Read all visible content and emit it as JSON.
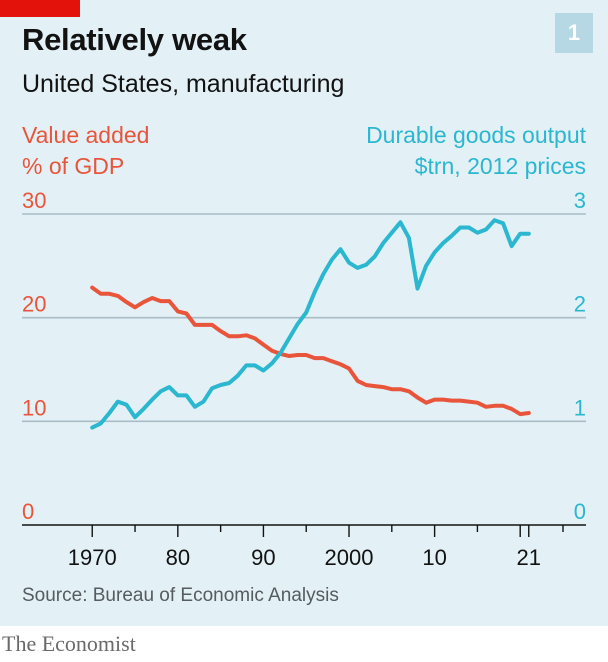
{
  "header": {
    "title": "Relatively weak",
    "subtitle": "United States, manufacturing",
    "badge": "1"
  },
  "footer": {
    "source": "Source: Bureau of Economic Analysis",
    "brand": "The Economist"
  },
  "chart_data": {
    "type": "line",
    "title": "Relatively weak",
    "subtitle": "United States, manufacturing",
    "grid": true,
    "x_ticks": [
      {
        "x": 1970,
        "label": "1970"
      },
      {
        "x": 1980,
        "label": "80"
      },
      {
        "x": 1990,
        "label": "90"
      },
      {
        "x": 2000,
        "label": "2000"
      },
      {
        "x": 2010,
        "label": "10"
      },
      {
        "x": 2021,
        "label": "21"
      }
    ],
    "xlim": [
      1966,
      2025
    ],
    "axes": {
      "left": {
        "label": "Value added",
        "unit": "% of GDP",
        "ticks": [
          "0",
          "10",
          "20",
          "30"
        ],
        "ylim": [
          0,
          30
        ],
        "color": "#e8553b"
      },
      "right": {
        "label": "Durable goods output",
        "unit": "$trn, 2012 prices",
        "ticks": [
          "0",
          "1",
          "2",
          "3"
        ],
        "ylim": [
          0,
          3
        ],
        "color": "#2ab7cf"
      }
    },
    "series": [
      {
        "name": "Value added",
        "axis": "left",
        "color": "#e8553b",
        "x": [
          1970,
          1971,
          1972,
          1973,
          1974,
          1975,
          1976,
          1977,
          1978,
          1979,
          1980,
          1981,
          1982,
          1983,
          1984,
          1985,
          1986,
          1987,
          1988,
          1989,
          1990,
          1991,
          1992,
          1993,
          1994,
          1995,
          1996,
          1997,
          1998,
          1999,
          2000,
          2001,
          2002,
          2003,
          2004,
          2005,
          2006,
          2007,
          2008,
          2009,
          2010,
          2011,
          2012,
          2013,
          2014,
          2015,
          2016,
          2017,
          2018,
          2019,
          2020,
          2021
        ],
        "values": [
          22.9,
          22.3,
          22.3,
          22.1,
          21.5,
          21.0,
          21.5,
          21.9,
          21.6,
          21.6,
          20.6,
          20.4,
          19.3,
          19.3,
          19.3,
          18.7,
          18.2,
          18.2,
          18.3,
          18.0,
          17.4,
          16.8,
          16.5,
          16.3,
          16.4,
          16.4,
          16.1,
          16.1,
          15.8,
          15.5,
          15.1,
          13.9,
          13.5,
          13.4,
          13.3,
          13.1,
          13.1,
          12.9,
          12.3,
          11.8,
          12.1,
          12.1,
          12.0,
          12.0,
          11.9,
          11.8,
          11.4,
          11.5,
          11.5,
          11.2,
          10.7,
          10.8
        ]
      },
      {
        "name": "Durable goods output",
        "axis": "right",
        "color": "#2ab7cf",
        "x": [
          1970,
          1971,
          1972,
          1973,
          1974,
          1975,
          1976,
          1977,
          1978,
          1979,
          1980,
          1981,
          1982,
          1983,
          1984,
          1985,
          1986,
          1987,
          1988,
          1989,
          1990,
          1991,
          1992,
          1993,
          1994,
          1995,
          1996,
          1997,
          1998,
          1999,
          2000,
          2001,
          2002,
          2003,
          2004,
          2005,
          2006,
          2007,
          2008,
          2009,
          2010,
          2011,
          2012,
          2013,
          2014,
          2015,
          2016,
          2017,
          2018,
          2019,
          2020,
          2021
        ],
        "values": [
          0.94,
          0.98,
          1.08,
          1.19,
          1.16,
          1.04,
          1.12,
          1.21,
          1.29,
          1.33,
          1.25,
          1.25,
          1.14,
          1.19,
          1.32,
          1.35,
          1.37,
          1.44,
          1.54,
          1.54,
          1.49,
          1.56,
          1.66,
          1.8,
          1.94,
          2.05,
          2.25,
          2.42,
          2.56,
          2.66,
          2.53,
          2.48,
          2.51,
          2.59,
          2.72,
          2.82,
          2.92,
          2.77,
          2.28,
          2.5,
          2.63,
          2.72,
          2.79,
          2.87,
          2.87,
          2.82,
          2.85,
          2.94,
          2.91,
          2.69,
          2.81,
          2.81
        ]
      }
    ]
  }
}
